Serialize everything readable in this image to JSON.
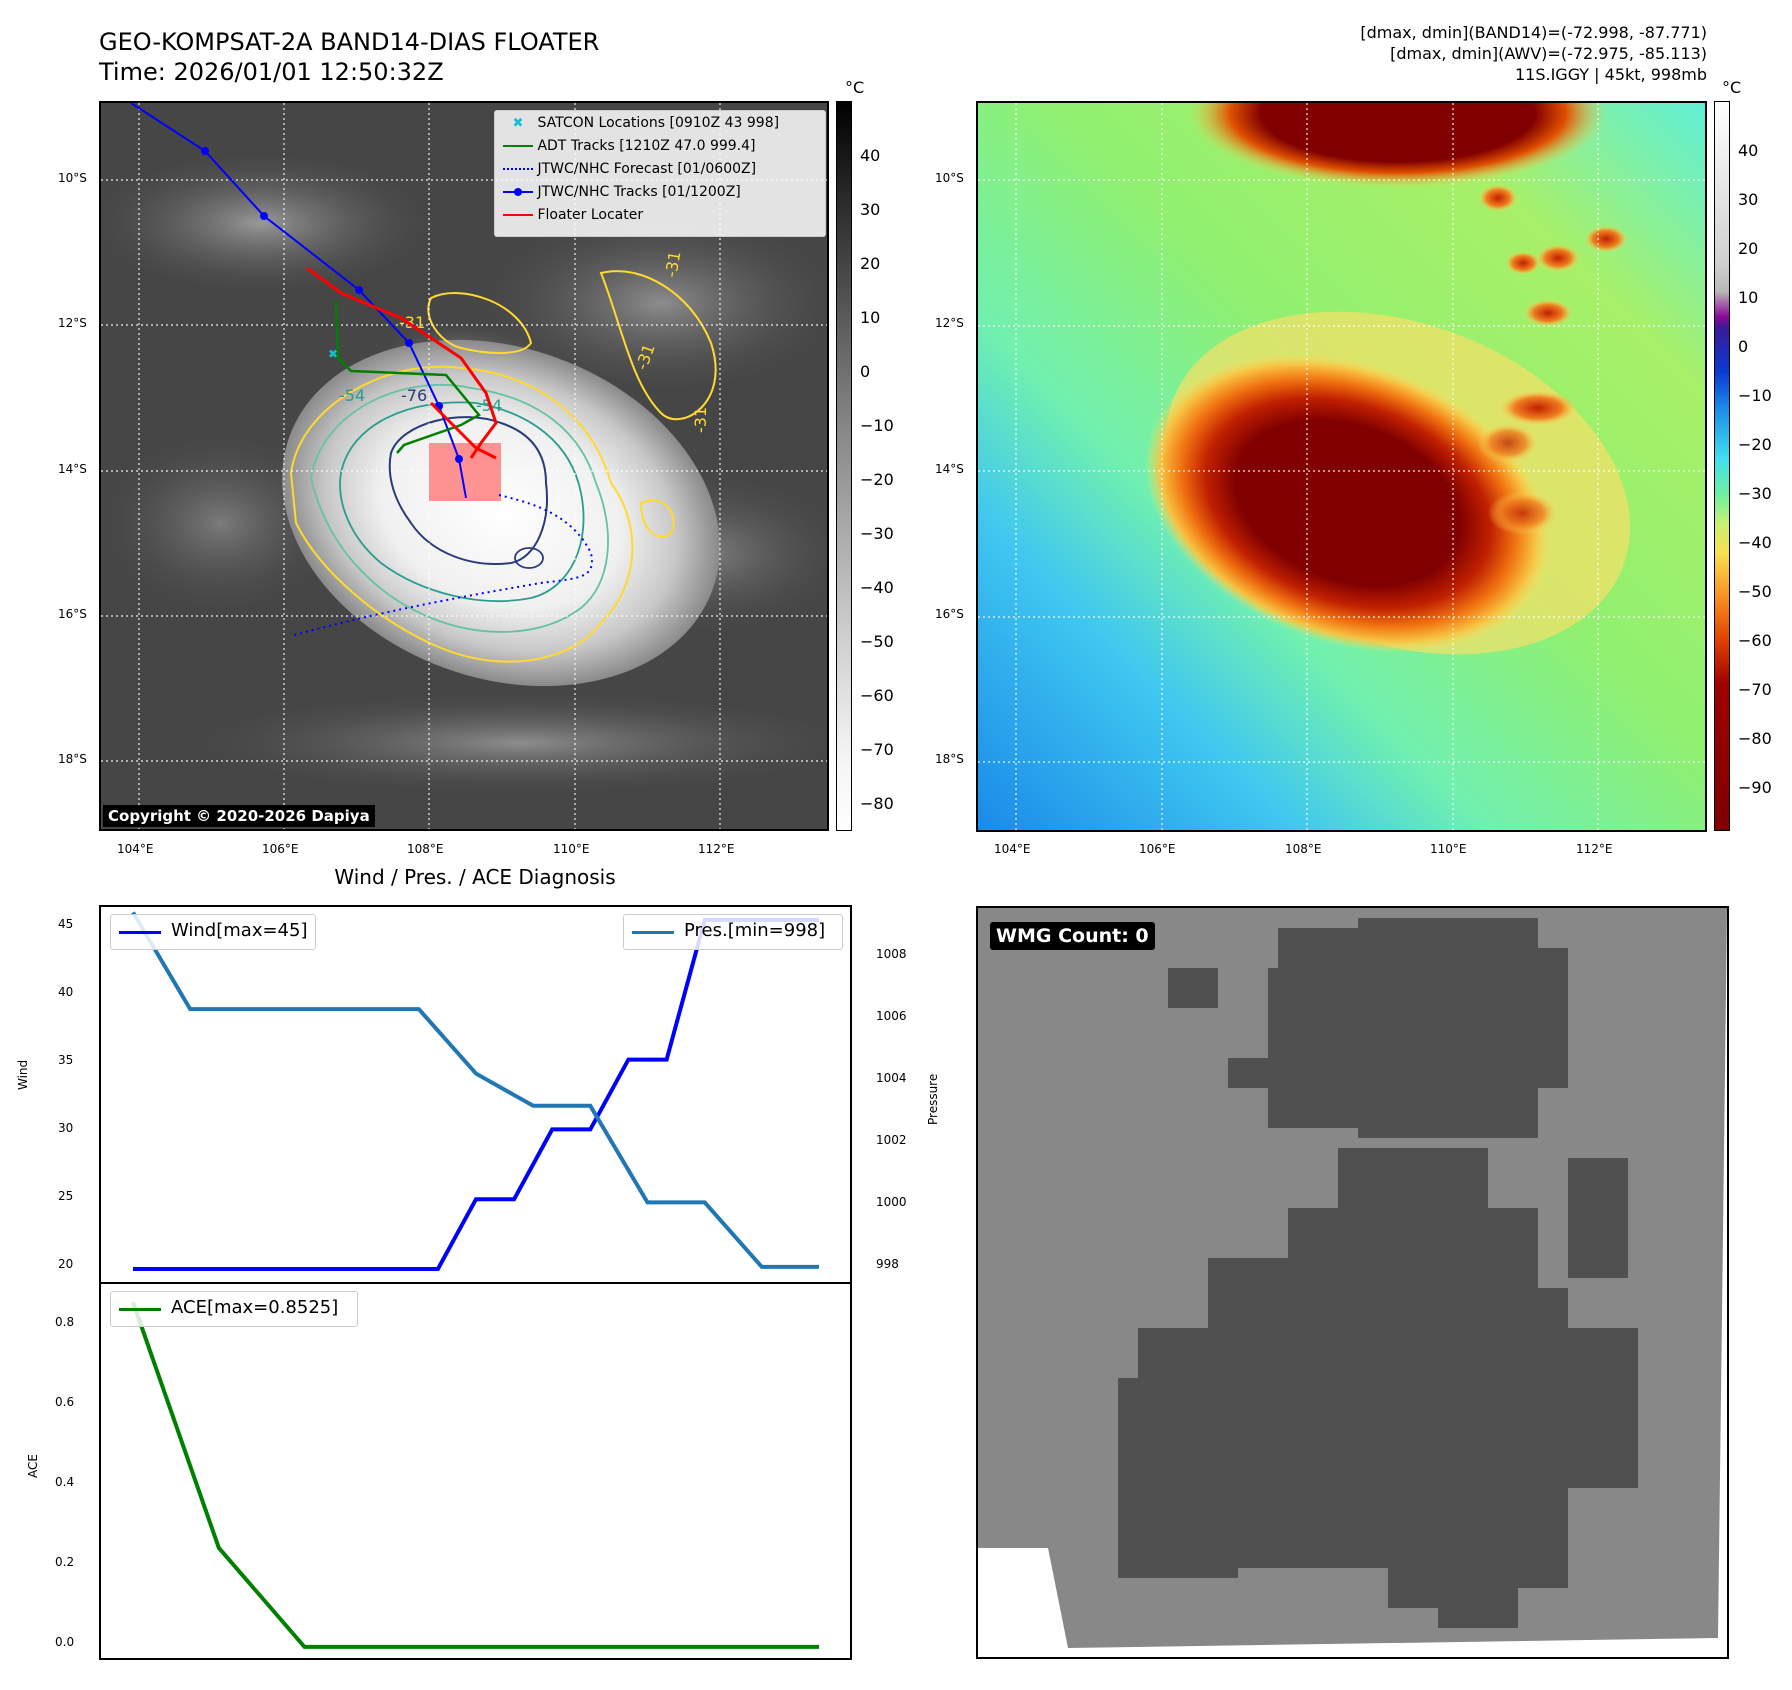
{
  "title": {
    "line1": "GEO-KOMPSAT-2A BAND14-DIAS FLOATER",
    "line2": "Time: 2026/01/01 12:50:32Z"
  },
  "top_right_info": {
    "line1": "[dmax, dmin](BAND14)=(-72.998, -87.771)",
    "line2": "[dmax, dmin](AWV)=(-72.975, -85.113)",
    "line3": "11S.IGGY | 45kt, 998mb"
  },
  "map": {
    "lat_labels": [
      "10°S",
      "12°S",
      "14°S",
      "16°S",
      "18°S"
    ],
    "lon_labels": [
      "104°E",
      "106°E",
      "108°E",
      "110°E",
      "112°E"
    ],
    "copyright": "Copyright © 2020-2026 Dapiya",
    "contour_labels": [
      "-31",
      "-54",
      "-76",
      "-54",
      "-31",
      "-31",
      "-31"
    ],
    "legend": [
      {
        "label": "SATCON Locations [0910Z 43 998]",
        "color": "#17becf"
      },
      {
        "label": "ADT Tracks [1210Z 47.0 999.4]",
        "color": "#008000"
      },
      {
        "label": "JTWC/NHC Forecast [01/0600Z]",
        "color": "#0000ff"
      },
      {
        "label": "JTWC/NHC Tracks [01/1200Z]",
        "color": "#0000ff"
      },
      {
        "label": "Floater Locater",
        "color": "#ff0000"
      }
    ]
  },
  "gray_colorbar": {
    "unit": "°C",
    "ticks": [
      "40",
      "30",
      "20",
      "10",
      "0",
      "−10",
      "−20",
      "−30",
      "−40",
      "−50",
      "−60",
      "−70",
      "−80"
    ]
  },
  "color_colorbar": {
    "unit": "°C",
    "ticks": [
      "40",
      "30",
      "20",
      "10",
      "0",
      "−10",
      "−20",
      "−30",
      "−40",
      "−50",
      "−60",
      "−70",
      "−80",
      "−90"
    ]
  },
  "diagnosis": {
    "title": "Wind / Pres. / ACE Diagnosis",
    "wind_ylabel": "Wind",
    "pres_ylabel": "Pressure",
    "ace_ylabel": "ACE",
    "wind_legend": "Wind[max=45]",
    "pres_legend": "Pres.[min=998]",
    "ace_legend": "ACE[max=0.8525]",
    "wind_ticks": [
      "45",
      "40",
      "35",
      "30",
      "25",
      "20"
    ],
    "pres_ticks": [
      "1008",
      "1006",
      "1004",
      "1002",
      "1000",
      "998"
    ],
    "ace_ticks": [
      "0.8",
      "0.6",
      "0.4",
      "0.2",
      "0.0"
    ]
  },
  "wmg": {
    "label": "WMG Count: 0"
  },
  "chart_data": [
    {
      "type": "line",
      "ylabel": "Wind",
      "ylim": [
        19,
        46
      ],
      "series": [
        {
          "name": "Wind[max=45]",
          "color": "#0000ff",
          "values": [
            45,
            45,
            45,
            45,
            35,
            35,
            30,
            30,
            25,
            25,
            20,
            20,
            20,
            20,
            20,
            20,
            20,
            20,
            20
          ]
        }
      ],
      "legend_placement": "top-left"
    },
    {
      "type": "line",
      "ylabel": "Pressure",
      "ylim": [
        997.5,
        1009.2
      ],
      "series": [
        {
          "name": "Pres.[min=998]",
          "color": "#1f77b4",
          "values": [
            998,
            998,
            1000,
            1000,
            1003,
            1003,
            1004,
            1006,
            1006,
            1006,
            1006,
            1006,
            1009
          ]
        }
      ],
      "legend_placement": "top-right"
    },
    {
      "type": "line",
      "ylabel": "ACE",
      "ylim": [
        -0.03,
        0.9
      ],
      "series": [
        {
          "name": "ACE[max=0.8525]",
          "color": "#008000",
          "values": [
            0,
            0,
            0,
            0,
            0,
            0,
            0,
            0.245,
            0.8525
          ]
        }
      ],
      "legend_placement": "top-left"
    }
  ]
}
